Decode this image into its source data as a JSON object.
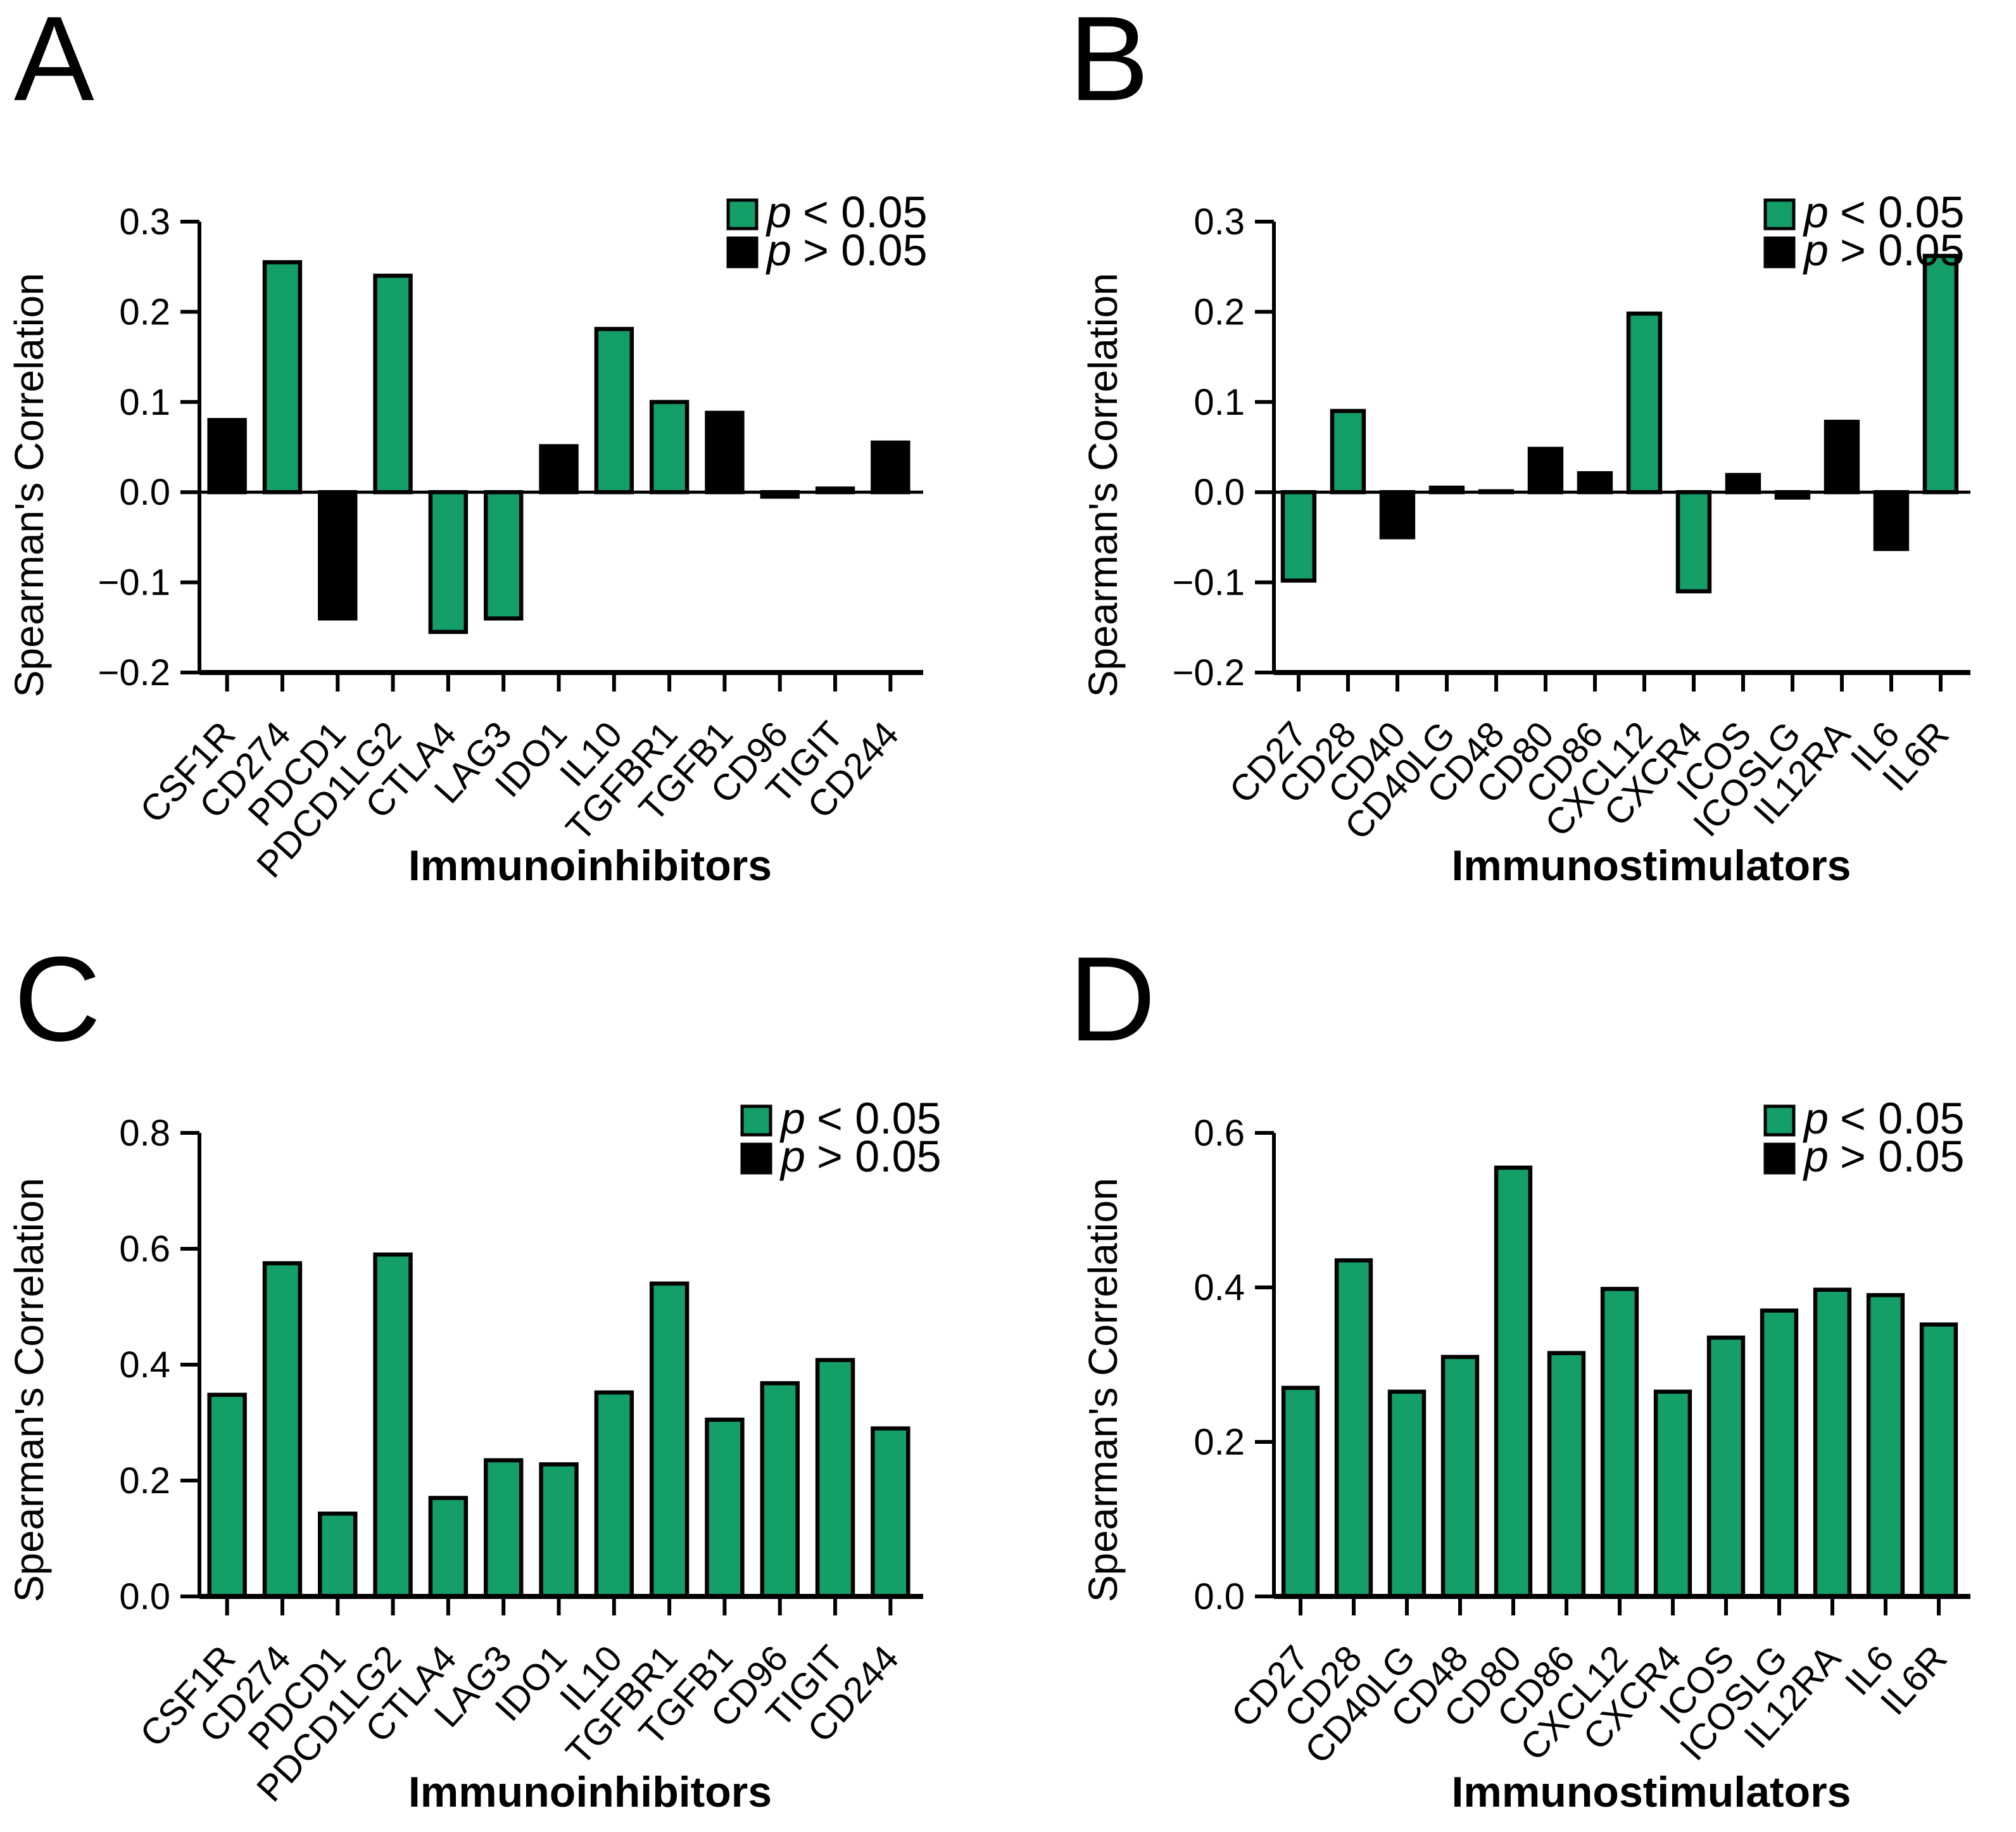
{
  "figure": {
    "background": "#ffffff",
    "colors": {
      "significant": "#149E68",
      "not_significant": "#000000",
      "axis": "#000000"
    },
    "legend": {
      "position": "top-right",
      "items": [
        {
          "label": "p < 0.05",
          "symbol": "p",
          "condition": "< 0.05",
          "swatch": "significant"
        },
        {
          "label": "p > 0.05",
          "symbol": "p",
          "condition": "> 0.05",
          "swatch": "not_significant"
        }
      ]
    }
  },
  "chart_data": [
    {
      "panel_label": "A",
      "type": "bar",
      "title": "",
      "xlabel": "Immunoinhibitors",
      "ylabel": "Spearman's Correlation",
      "ylim": [
        -0.2,
        0.3
      ],
      "yticks": [
        0.3,
        0.2,
        0.1,
        0.0,
        -0.1,
        -0.2
      ],
      "ytick_labels": [
        "0.3",
        "0.2",
        "0.1",
        "0.0",
        "−0.1",
        "−0.2"
      ],
      "grid": false,
      "legend_position": "top-right",
      "categories": [
        "CSF1R",
        "CD274",
        "PDCD1",
        "PDCD1LG2",
        "CTLA4",
        "LAG3",
        "IDO1",
        "IL10",
        "TGFBR1",
        "TGFB1",
        "CD96",
        "TIGIT",
        "CD244"
      ],
      "values": [
        0.08,
        0.255,
        -0.14,
        0.24,
        -0.155,
        -0.14,
        0.051,
        0.181,
        0.1,
        0.088,
        -0.005,
        0.004,
        0.055
      ],
      "significant": [
        false,
        true,
        false,
        true,
        true,
        true,
        false,
        true,
        true,
        false,
        false,
        false,
        false
      ]
    },
    {
      "panel_label": "B",
      "type": "bar",
      "title": "",
      "xlabel": "Immunostimulators",
      "ylabel": "Spearman's Correlation",
      "ylim": [
        -0.2,
        0.3
      ],
      "yticks": [
        0.3,
        0.2,
        0.1,
        0.0,
        -0.1,
        -0.2
      ],
      "ytick_labels": [
        "0.3",
        "0.2",
        "0.1",
        "0.0",
        "−0.1",
        "−0.2"
      ],
      "grid": false,
      "legend_position": "top-right",
      "categories": [
        "CD27",
        "CD28",
        "CD40",
        "CD40LG",
        "CD48",
        "CD80",
        "CD86",
        "CXCL12",
        "CXCR4",
        "ICOS",
        "ICOSLG",
        "IL12RA",
        "IL6",
        "IL6R"
      ],
      "values": [
        -0.098,
        0.09,
        -0.05,
        0.005,
        0.001,
        0.048,
        0.021,
        0.198,
        -0.11,
        0.019,
        -0.006,
        0.078,
        -0.063,
        0.262
      ],
      "significant": [
        true,
        true,
        false,
        false,
        false,
        false,
        false,
        true,
        true,
        false,
        false,
        false,
        false,
        true
      ]
    },
    {
      "panel_label": "C",
      "type": "bar",
      "title": "",
      "xlabel": "Immunoinhibitors",
      "ylabel": "Spearman's Correlation",
      "ylim": [
        0.0,
        0.8
      ],
      "yticks": [
        0.8,
        0.6,
        0.4,
        0.2,
        0.0
      ],
      "ytick_labels": [
        "0.8",
        "0.6",
        "0.4",
        "0.2",
        "0.0"
      ],
      "grid": false,
      "legend_position": "top-right",
      "categories": [
        "CSF1R",
        "CD274",
        "PDCD1",
        "PDCD1LG2",
        "CTLA4",
        "LAG3",
        "IDO1",
        "IL10",
        "TGFBR1",
        "TGFB1",
        "CD96",
        "TIGIT",
        "CD244"
      ],
      "values": [
        0.348,
        0.575,
        0.143,
        0.59,
        0.17,
        0.235,
        0.228,
        0.352,
        0.54,
        0.305,
        0.368,
        0.408,
        0.29
      ],
      "significant": [
        true,
        true,
        true,
        true,
        true,
        true,
        true,
        true,
        true,
        true,
        true,
        true,
        true
      ]
    },
    {
      "panel_label": "D",
      "type": "bar",
      "title": "",
      "xlabel": "Immunostimulators",
      "ylabel": "Spearman's Correlation",
      "ylim": [
        0.0,
        0.6
      ],
      "yticks": [
        0.6,
        0.4,
        0.2,
        0.0
      ],
      "ytick_labels": [
        "0.6",
        "0.4",
        "0.2",
        "0.0"
      ],
      "grid": false,
      "legend_position": "top-right",
      "categories": [
        "CD27",
        "CD28",
        "CD40LG",
        "CD48",
        "CD80",
        "CD86",
        "CXCL12",
        "CXCR4",
        "ICOS",
        "ICOSLG",
        "IL12RA",
        "IL6",
        "IL6R"
      ],
      "values": [
        0.27,
        0.435,
        0.265,
        0.31,
        0.555,
        0.315,
        0.398,
        0.265,
        0.335,
        0.37,
        0.397,
        0.39,
        0.352
      ],
      "significant": [
        true,
        true,
        true,
        true,
        true,
        true,
        true,
        true,
        true,
        true,
        true,
        true,
        true
      ]
    }
  ]
}
